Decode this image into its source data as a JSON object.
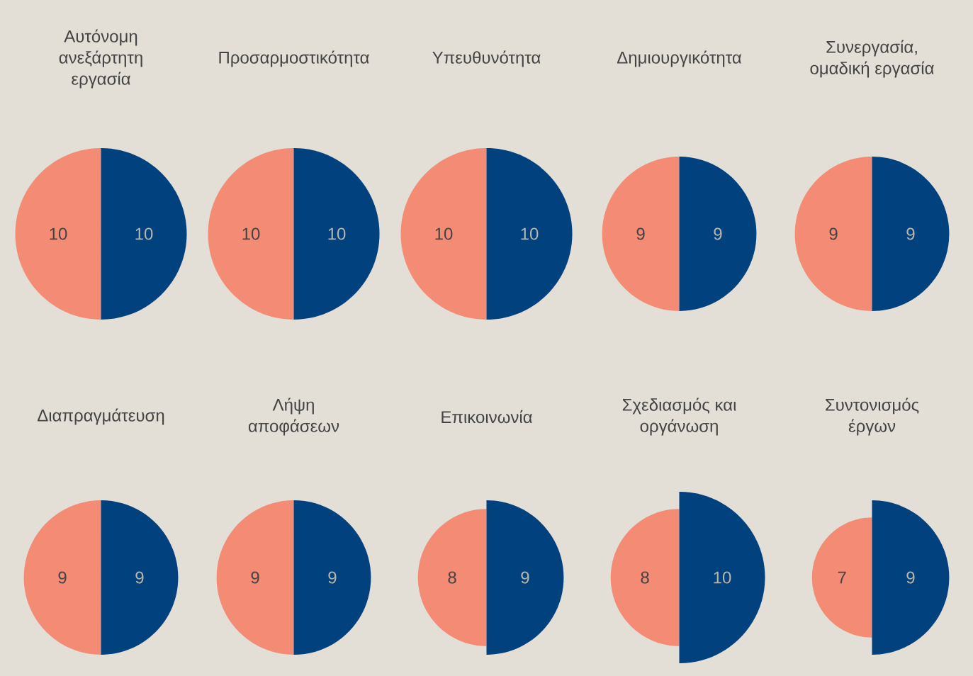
{
  "chart_data": {
    "type": "other",
    "categories": [
      "Αυτόνομη ανεξάρτητη εργασία",
      "Προσαρμοστικότητα",
      "Υπευθυνότητα",
      "Δημιουργικότητα",
      "Συνεργασία, ομαδική εργασία",
      "Διαπραγμάτευση",
      "Λήψη αποφάσεων",
      "Επικοινωνία",
      "Σχεδιασμός και οργάνωση",
      "Συντονισμός έργων"
    ],
    "series": [
      {
        "color": "#f48b74",
        "values": [
          10,
          10,
          10,
          9,
          9,
          9,
          9,
          8,
          8,
          7
        ]
      },
      {
        "color": "#01417e",
        "values": [
          10,
          10,
          10,
          9,
          9,
          9,
          9,
          9,
          10,
          9
        ]
      }
    ],
    "data_labels": true
  }
}
